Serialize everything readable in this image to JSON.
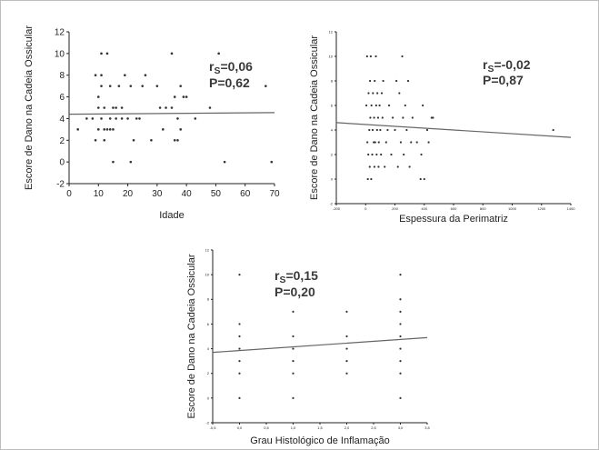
{
  "chart_data": [
    {
      "type": "scatter",
      "xlabel": "Idade",
      "ylabel": "Escore de Dano na Cadeia Ossicular",
      "xlim": [
        0,
        70
      ],
      "ylim": [
        -2,
        12
      ],
      "xticks": [
        0,
        10,
        20,
        30,
        40,
        50,
        60,
        70
      ],
      "yticks": [
        -2,
        0,
        2,
        4,
        6,
        8,
        10,
        12
      ],
      "rs_label": "0,06",
      "p_label": "P=0,62",
      "trend": [
        [
          0,
          4.4
        ],
        [
          70,
          4.55
        ]
      ],
      "points": [
        [
          3,
          3
        ],
        [
          6,
          4
        ],
        [
          8,
          4
        ],
        [
          9,
          8
        ],
        [
          9,
          2
        ],
        [
          10,
          3
        ],
        [
          10,
          5
        ],
        [
          10,
          6
        ],
        [
          11,
          10
        ],
        [
          11,
          8
        ],
        [
          11,
          7
        ],
        [
          11,
          4
        ],
        [
          12,
          3
        ],
        [
          12,
          2
        ],
        [
          12,
          5
        ],
        [
          13,
          10
        ],
        [
          13,
          3
        ],
        [
          14,
          3
        ],
        [
          14,
          7
        ],
        [
          14,
          4
        ],
        [
          15,
          0
        ],
        [
          15,
          3
        ],
        [
          15,
          5
        ],
        [
          16,
          5
        ],
        [
          16,
          4
        ],
        [
          17,
          7
        ],
        [
          18,
          5
        ],
        [
          18,
          4
        ],
        [
          19,
          8
        ],
        [
          20,
          4
        ],
        [
          21,
          7
        ],
        [
          21,
          0
        ],
        [
          22,
          2
        ],
        [
          23,
          4
        ],
        [
          24,
          4
        ],
        [
          25,
          7
        ],
        [
          26,
          8
        ],
        [
          28,
          2
        ],
        [
          30,
          7
        ],
        [
          31,
          5
        ],
        [
          32,
          3
        ],
        [
          33,
          5
        ],
        [
          35,
          5
        ],
        [
          35,
          10
        ],
        [
          36,
          6
        ],
        [
          36,
          2
        ],
        [
          37,
          2
        ],
        [
          37,
          4
        ],
        [
          38,
          7
        ],
        [
          38,
          3
        ],
        [
          39,
          6
        ],
        [
          40,
          6
        ],
        [
          43,
          4
        ],
        [
          48,
          5
        ],
        [
          51,
          10
        ],
        [
          53,
          0
        ],
        [
          67,
          7
        ],
        [
          69,
          0
        ]
      ]
    },
    {
      "type": "scatter",
      "xlabel": "Espessura da Perimatriz",
      "ylabel": "Escore de Dano na Cadeia Ossicular",
      "xlim": [
        -200,
        1400
      ],
      "ylim": [
        -2,
        12
      ],
      "xticks": [
        -200,
        0,
        200,
        400,
        600,
        800,
        1000,
        1200,
        1400
      ],
      "yticks": [
        -2,
        0,
        2,
        4,
        6,
        8,
        10,
        12
      ],
      "rs_label": "-0,02",
      "p_label": "P=0,87",
      "trend": [
        [
          -200,
          4.6
        ],
        [
          1400,
          3.4
        ]
      ],
      "points": [
        [
          5,
          6
        ],
        [
          10,
          10
        ],
        [
          12,
          3
        ],
        [
          15,
          0
        ],
        [
          18,
          2
        ],
        [
          20,
          7
        ],
        [
          25,
          4
        ],
        [
          28,
          1
        ],
        [
          30,
          8
        ],
        [
          32,
          5
        ],
        [
          35,
          10
        ],
        [
          38,
          0
        ],
        [
          40,
          6
        ],
        [
          45,
          2
        ],
        [
          48,
          4
        ],
        [
          50,
          7
        ],
        [
          55,
          3
        ],
        [
          58,
          5
        ],
        [
          60,
          1
        ],
        [
          62,
          8
        ],
        [
          65,
          3
        ],
        [
          70,
          10
        ],
        [
          72,
          6
        ],
        [
          75,
          2
        ],
        [
          78,
          4
        ],
        [
          80,
          7
        ],
        [
          85,
          5
        ],
        [
          88,
          1
        ],
        [
          90,
          3
        ],
        [
          95,
          6
        ],
        [
          100,
          4
        ],
        [
          105,
          2
        ],
        [
          110,
          7
        ],
        [
          115,
          5
        ],
        [
          120,
          8
        ],
        [
          130,
          1
        ],
        [
          140,
          3
        ],
        [
          150,
          4
        ],
        [
          160,
          6
        ],
        [
          175,
          2
        ],
        [
          185,
          5
        ],
        [
          200,
          4
        ],
        [
          210,
          8
        ],
        [
          220,
          1
        ],
        [
          230,
          7
        ],
        [
          240,
          3
        ],
        [
          250,
          10
        ],
        [
          255,
          5
        ],
        [
          260,
          2
        ],
        [
          270,
          6
        ],
        [
          280,
          4
        ],
        [
          290,
          8
        ],
        [
          300,
          1
        ],
        [
          310,
          3
        ],
        [
          320,
          5
        ],
        [
          350,
          3
        ],
        [
          375,
          0
        ],
        [
          380,
          2
        ],
        [
          390,
          6
        ],
        [
          400,
          0
        ],
        [
          420,
          4
        ],
        [
          430,
          3
        ],
        [
          450,
          5
        ],
        [
          460,
          5
        ],
        [
          1280,
          4
        ]
      ]
    },
    {
      "type": "scatter",
      "xlabel": "Grau Histológico de Inflamação",
      "ylabel": "Escore de Dano na Cadeia Ossicular",
      "xlim": [
        -0.5,
        3.5
      ],
      "ylim": [
        -2,
        12
      ],
      "xticks": [
        -0.5,
        0.0,
        0.5,
        1.0,
        1.5,
        2.0,
        2.5,
        3.0,
        3.5
      ],
      "xticklabels": [
        "-0,5",
        "0,0",
        "0,5",
        "1,0",
        "1,5",
        "2,0",
        "2,5",
        "3,0",
        "3,5"
      ],
      "yticks": [
        -2,
        0,
        2,
        4,
        6,
        8,
        10,
        12
      ],
      "rs_label": "0,15",
      "p_label": "P=0,20",
      "trend": [
        [
          -0.5,
          3.7
        ],
        [
          3.5,
          4.9
        ]
      ],
      "points": [
        [
          0,
          10
        ],
        [
          0,
          6
        ],
        [
          0,
          5
        ],
        [
          0,
          4
        ],
        [
          0,
          3
        ],
        [
          0,
          2
        ],
        [
          0,
          0
        ],
        [
          1,
          7
        ],
        [
          1,
          5
        ],
        [
          1,
          4
        ],
        [
          1,
          3
        ],
        [
          1,
          2
        ],
        [
          1,
          0
        ],
        [
          2,
          7
        ],
        [
          2,
          5
        ],
        [
          2,
          4
        ],
        [
          2,
          3
        ],
        [
          2,
          2
        ],
        [
          3,
          10
        ],
        [
          3,
          8
        ],
        [
          3,
          7
        ],
        [
          3,
          6
        ],
        [
          3,
          5
        ],
        [
          3,
          4
        ],
        [
          3,
          3
        ],
        [
          3,
          2
        ],
        [
          3,
          0
        ]
      ]
    }
  ],
  "rs_prefix": "r",
  "rs_subscript": "S",
  "rs_eq": "="
}
